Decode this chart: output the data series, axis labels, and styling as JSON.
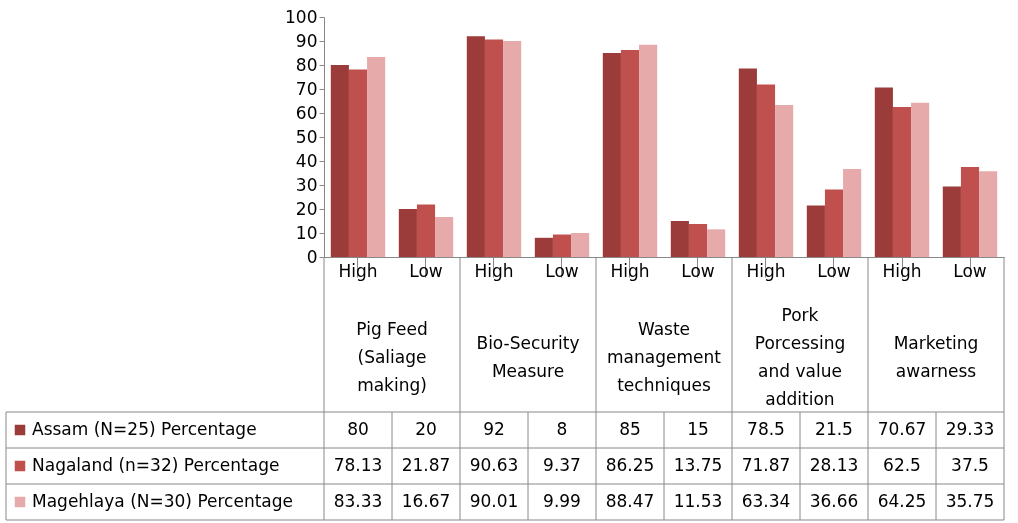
{
  "chart_data": {
    "type": "bar",
    "categories": [
      "High",
      "Low",
      "High",
      "Low",
      "High",
      "Low",
      "High",
      "Low",
      "High",
      "Low"
    ],
    "series": [
      {
        "name": "Assam (N=25) Percentage",
        "color": "#9b3b3a",
        "values": [
          80,
          20,
          92,
          8,
          85,
          15,
          78.5,
          21.5,
          70.67,
          29.33
        ]
      },
      {
        "name": "Nagaland (n=32) Percentage",
        "color": "#c0504d",
        "values": [
          78.13,
          21.87,
          90.63,
          9.37,
          86.25,
          13.75,
          71.87,
          28.13,
          62.5,
          37.5
        ]
      },
      {
        "name": "Magehlaya (N=30) Percentage",
        "color": "#e5aaa9",
        "values": [
          83.33,
          16.67,
          90.01,
          9.99,
          88.47,
          11.53,
          63.34,
          36.66,
          64.25,
          35.75
        ]
      }
    ],
    "annotations": [
      "Pig Feed (Saliage making)",
      "Bio-Security Measure",
      "Waste management techniques",
      "Pork Porcessing and value addition",
      "Marketing awarness"
    ],
    "ylim": [
      0,
      100
    ],
    "yticks": [
      0,
      10,
      20,
      30,
      40,
      50,
      60,
      70,
      80,
      90,
      100
    ],
    "grid": false,
    "data_labels": true,
    "legend": "bottom left"
  }
}
